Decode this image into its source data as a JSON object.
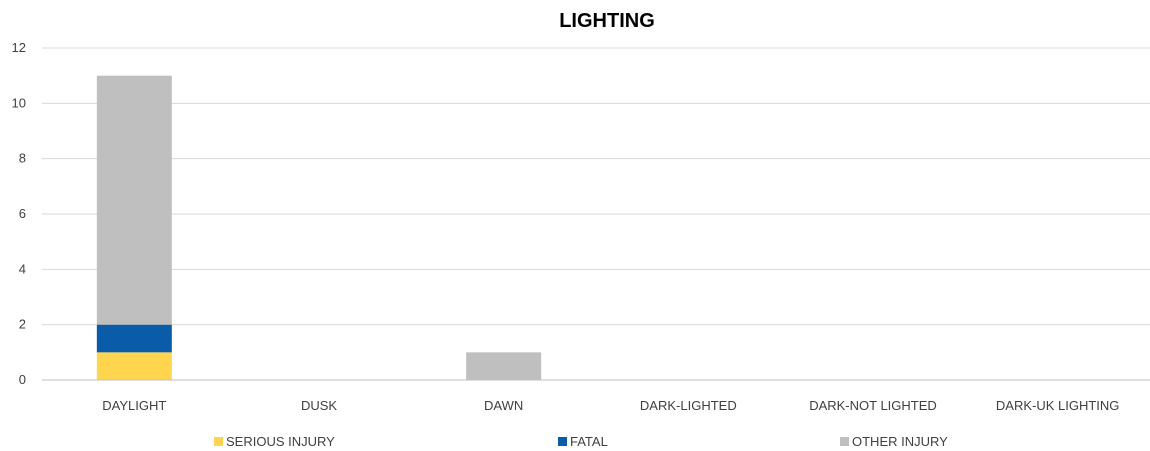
{
  "chart_data": {
    "type": "bar",
    "stacked": true,
    "title": "LIGHTING",
    "xlabel": "",
    "ylabel": "",
    "ylim": [
      0,
      12
    ],
    "yticks": [
      0,
      2,
      4,
      6,
      8,
      10,
      12
    ],
    "grid": true,
    "legend_position": "bottom",
    "categories": [
      "DAYLIGHT",
      "DUSK",
      "DAWN",
      "DARK-LIGHTED",
      "DARK-NOT LIGHTED",
      "DARK-UK LIGHTING"
    ],
    "series": [
      {
        "name": "SERIOUS INJURY",
        "color": "#ffd54f",
        "values": [
          1,
          0,
          0,
          0,
          0,
          0
        ]
      },
      {
        "name": "FATAL",
        "color": "#0a5ca8",
        "values": [
          1,
          0,
          0,
          0,
          0,
          0
        ]
      },
      {
        "name": "OTHER INJURY",
        "color": "#bfbfbf",
        "values": [
          9,
          0,
          1,
          0,
          0,
          0
        ]
      }
    ]
  }
}
